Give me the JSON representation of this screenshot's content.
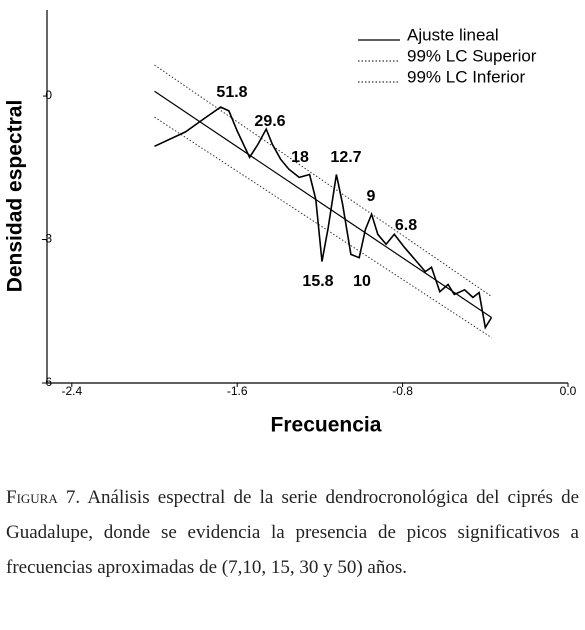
{
  "chart_data": {
    "type": "line",
    "x_label": "Frecuencia",
    "y_label": "Densidad espectral",
    "xlim": [
      -2.52,
      0
    ],
    "ylim": [
      -6,
      1.8
    ],
    "xticks": [
      -2.4,
      -1.6,
      -0.8,
      {
        "value": 0,
        "label": "0.0"
      }
    ],
    "yticks": [
      0,
      -3,
      -6
    ],
    "legend_position": "upper right",
    "series": [
      {
        "name": "Ajuste lineal",
        "color": "#000000",
        "style": "solid",
        "x": [
          -2.0,
          -0.37
        ],
        "values": [
          0.1,
          -4.63
        ]
      },
      {
        "name": "99% LC Superior",
        "color": "#333333",
        "style": "dotted",
        "x": [
          -2.0,
          -0.37
        ],
        "values": [
          0.65,
          -4.19
        ]
      },
      {
        "name": "99% LC Inferior",
        "color": "#333333",
        "style": "dotted",
        "x": [
          -2.0,
          -0.37
        ],
        "values": [
          -0.44,
          -5.05
        ]
      }
    ],
    "curve": {
      "color": "#000000",
      "x": [
        -2.0,
        -1.85,
        -1.75,
        -1.68,
        -1.64,
        -1.6,
        -1.54,
        -1.5,
        -1.46,
        -1.43,
        -1.39,
        -1.35,
        -1.3,
        -1.25,
        -1.22,
        -1.19,
        -1.16,
        -1.12,
        -1.09,
        -1.05,
        -1.01,
        -0.98,
        -0.95,
        -0.92,
        -0.88,
        -0.84,
        -0.79,
        -0.74,
        -0.69,
        -0.66,
        -0.62,
        -0.58,
        -0.55,
        -0.5,
        -0.46,
        -0.43,
        -0.4,
        -0.37
      ],
      "values": [
        -1.05,
        -0.75,
        -0.44,
        -0.23,
        -0.31,
        -0.73,
        -1.28,
        -1.01,
        -0.69,
        -1.01,
        -1.32,
        -1.53,
        -1.7,
        -1.64,
        -2.16,
        -3.46,
        -2.75,
        -1.64,
        -2.26,
        -3.31,
        -3.38,
        -2.79,
        -2.47,
        -2.89,
        -3.1,
        -2.89,
        -3.17,
        -3.42,
        -3.67,
        -3.58,
        -4.09,
        -3.94,
        -4.15,
        -4.05,
        -4.21,
        -4.11,
        -4.84,
        -4.63
      ]
    },
    "annotations": [
      "51.8",
      "29.6",
      "18",
      "12.7",
      "9",
      "6.8",
      "15.8",
      "10"
    ]
  },
  "caption": {
    "label": "Figura 7.",
    "text": "Análisis espectral de la serie dendrocronológica del ciprés de Guadalupe, donde se evidencia la presencia de picos significativos a frecuencias aproximadas de (7,10, 15, 30 y 50) años."
  }
}
